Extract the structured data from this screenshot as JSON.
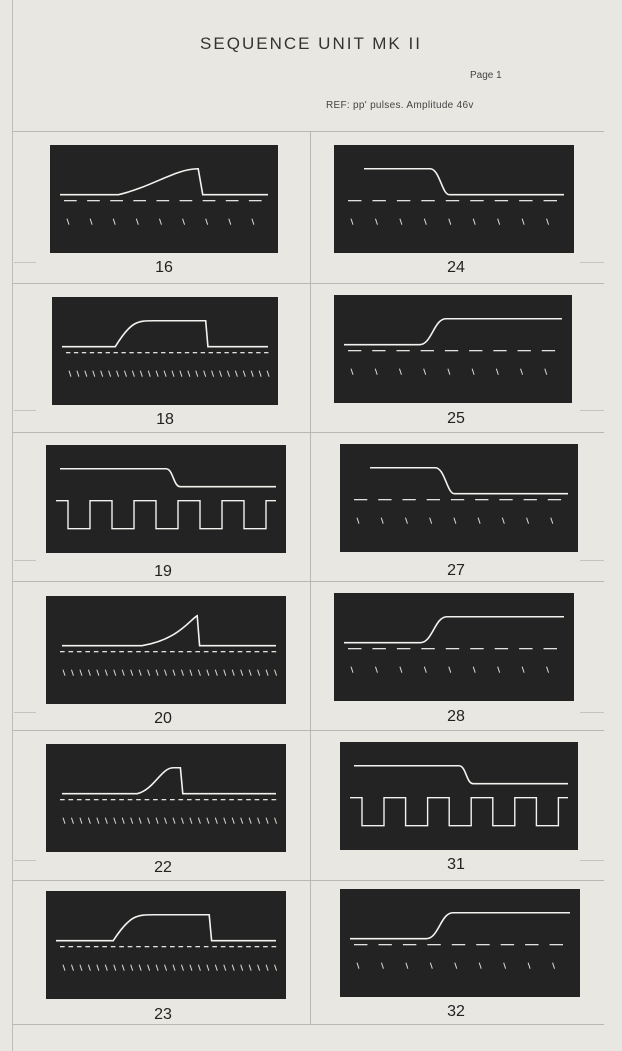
{
  "header": {
    "title": "SEQUENCE UNIT MK II",
    "page": "Page 1",
    "reference": "REF: pp' pulses. Amplitude 46v"
  },
  "traces": [
    {
      "label": "16",
      "shape": "ramp",
      "column": "left"
    },
    {
      "label": "24",
      "shape": "step-down",
      "column": "right"
    },
    {
      "label": "18",
      "shape": "plateau",
      "column": "left"
    },
    {
      "label": "25",
      "shape": "step-up",
      "column": "right"
    },
    {
      "label": "19",
      "shape": "square-step-down",
      "column": "left"
    },
    {
      "label": "27",
      "shape": "step-down",
      "column": "right"
    },
    {
      "label": "20",
      "shape": "sawtooth",
      "column": "left"
    },
    {
      "label": "28",
      "shape": "step-up",
      "column": "right"
    },
    {
      "label": "22",
      "shape": "pulse-peak",
      "column": "left"
    },
    {
      "label": "31",
      "shape": "square-step-down",
      "column": "right"
    },
    {
      "label": "23",
      "shape": "plateau",
      "column": "left"
    },
    {
      "label": "32",
      "shape": "step-up",
      "column": "right"
    }
  ]
}
